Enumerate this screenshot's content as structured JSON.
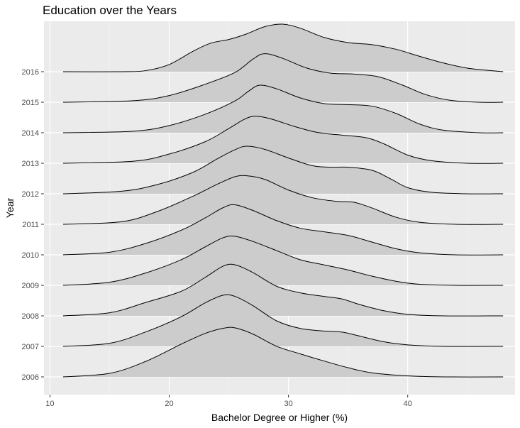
{
  "chart_data": {
    "type": "ridgeline",
    "title": "Education over the Years",
    "xlabel": "Bachelor Degree or Higher (%)",
    "ylabel": "Year",
    "xlim": [
      9.5,
      49
    ],
    "x_ticks": [
      10,
      20,
      30,
      40
    ],
    "x_range_of_each_ridge": [
      11.1,
      48
    ],
    "grid": true,
    "panel_background": "#ebebeb",
    "fill_color": "#cccccc",
    "line_color": "#000000",
    "series": [
      {
        "name": "2006",
        "points": [
          [
            11.1,
            0.0
          ],
          [
            15,
            0.07
          ],
          [
            18,
            0.3
          ],
          [
            21,
            0.64
          ],
          [
            23,
            0.85
          ],
          [
            24.5,
            0.95
          ],
          [
            25.5,
            0.96
          ],
          [
            27,
            0.84
          ],
          [
            29,
            0.6
          ],
          [
            31,
            0.45
          ],
          [
            33,
            0.31
          ],
          [
            35,
            0.18
          ],
          [
            37,
            0.08
          ],
          [
            40,
            0.02
          ],
          [
            43,
            0.0
          ],
          [
            48,
            0.0
          ]
        ]
      },
      {
        "name": "2007",
        "points": [
          [
            11.1,
            0.0
          ],
          [
            15,
            0.06
          ],
          [
            18,
            0.28
          ],
          [
            21,
            0.58
          ],
          [
            23,
            0.85
          ],
          [
            24.5,
            1.0
          ],
          [
            25.5,
            0.98
          ],
          [
            27,
            0.8
          ],
          [
            29,
            0.5
          ],
          [
            31,
            0.35
          ],
          [
            33,
            0.3
          ],
          [
            34.5,
            0.28
          ],
          [
            36,
            0.2
          ],
          [
            38,
            0.09
          ],
          [
            40,
            0.03
          ],
          [
            43,
            0.0
          ],
          [
            48,
            0.0
          ]
        ]
      },
      {
        "name": "2008",
        "points": [
          [
            11.1,
            0.0
          ],
          [
            15,
            0.06
          ],
          [
            18,
            0.26
          ],
          [
            21,
            0.48
          ],
          [
            23,
            0.75
          ],
          [
            24.5,
            0.97
          ],
          [
            25.5,
            1.0
          ],
          [
            27,
            0.85
          ],
          [
            29,
            0.58
          ],
          [
            31,
            0.45
          ],
          [
            33,
            0.38
          ],
          [
            34.5,
            0.33
          ],
          [
            36,
            0.22
          ],
          [
            38,
            0.1
          ],
          [
            40,
            0.03
          ],
          [
            43,
            0.0
          ],
          [
            48,
            0.0
          ]
        ]
      },
      {
        "name": "2009",
        "points": [
          [
            11.1,
            0.0
          ],
          [
            15,
            0.06
          ],
          [
            18,
            0.24
          ],
          [
            21,
            0.5
          ],
          [
            23,
            0.75
          ],
          [
            24.5,
            0.93
          ],
          [
            25.5,
            0.96
          ],
          [
            27,
            0.86
          ],
          [
            29,
            0.68
          ],
          [
            31,
            0.5
          ],
          [
            33,
            0.4
          ],
          [
            35,
            0.3
          ],
          [
            37,
            0.18
          ],
          [
            39,
            0.08
          ],
          [
            41,
            0.02
          ],
          [
            44,
            0.0
          ],
          [
            48,
            0.0
          ]
        ]
      },
      {
        "name": "2010",
        "points": [
          [
            11.1,
            0.0
          ],
          [
            15,
            0.05
          ],
          [
            18,
            0.22
          ],
          [
            21,
            0.48
          ],
          [
            23,
            0.72
          ],
          [
            24.5,
            0.92
          ],
          [
            25.5,
            0.98
          ],
          [
            27,
            0.87
          ],
          [
            29,
            0.67
          ],
          [
            31,
            0.52
          ],
          [
            33,
            0.45
          ],
          [
            35,
            0.38
          ],
          [
            37,
            0.25
          ],
          [
            39,
            0.12
          ],
          [
            41,
            0.04
          ],
          [
            44,
            0.0
          ],
          [
            48,
            0.0
          ]
        ]
      },
      {
        "name": "2011",
        "points": [
          [
            11.1,
            0.0
          ],
          [
            16,
            0.05
          ],
          [
            19,
            0.25
          ],
          [
            22,
            0.55
          ],
          [
            24,
            0.78
          ],
          [
            25.5,
            0.93
          ],
          [
            26.5,
            0.95
          ],
          [
            28,
            0.88
          ],
          [
            30,
            0.67
          ],
          [
            32,
            0.52
          ],
          [
            34,
            0.45
          ],
          [
            35.5,
            0.43
          ],
          [
            37,
            0.32
          ],
          [
            39,
            0.14
          ],
          [
            41,
            0.04
          ],
          [
            44,
            0.0
          ],
          [
            48,
            0.0
          ]
        ]
      },
      {
        "name": "2012",
        "points": [
          [
            11.1,
            0.0
          ],
          [
            16,
            0.05
          ],
          [
            19,
            0.18
          ],
          [
            22,
            0.42
          ],
          [
            24,
            0.68
          ],
          [
            25.5,
            0.86
          ],
          [
            26.5,
            0.93
          ],
          [
            28,
            0.87
          ],
          [
            30,
            0.7
          ],
          [
            32,
            0.55
          ],
          [
            33.5,
            0.52
          ],
          [
            35,
            0.52
          ],
          [
            37,
            0.46
          ],
          [
            38.5,
            0.3
          ],
          [
            40,
            0.12
          ],
          [
            42,
            0.03
          ],
          [
            45,
            0.0
          ],
          [
            48,
            0.0
          ]
        ]
      },
      {
        "name": "2013",
        "points": [
          [
            11.1,
            0.0
          ],
          [
            17,
            0.04
          ],
          [
            20,
            0.18
          ],
          [
            23,
            0.42
          ],
          [
            25,
            0.68
          ],
          [
            26.3,
            0.86
          ],
          [
            27.2,
            0.92
          ],
          [
            28.5,
            0.87
          ],
          [
            30.5,
            0.72
          ],
          [
            32.5,
            0.6
          ],
          [
            34.5,
            0.55
          ],
          [
            36.5,
            0.5
          ],
          [
            38,
            0.38
          ],
          [
            40,
            0.16
          ],
          [
            42,
            0.05
          ],
          [
            45,
            0.0
          ],
          [
            48,
            0.0
          ]
        ]
      },
      {
        "name": "2014",
        "points": [
          [
            11.1,
            0.0
          ],
          [
            17,
            0.03
          ],
          [
            20,
            0.14
          ],
          [
            23,
            0.36
          ],
          [
            25.5,
            0.62
          ],
          [
            26.7,
            0.82
          ],
          [
            27.6,
            0.93
          ],
          [
            29,
            0.86
          ],
          [
            31,
            0.68
          ],
          [
            33,
            0.57
          ],
          [
            35,
            0.55
          ],
          [
            37,
            0.52
          ],
          [
            39,
            0.38
          ],
          [
            41,
            0.17
          ],
          [
            43,
            0.05
          ],
          [
            46,
            0.0
          ],
          [
            48,
            0.0
          ]
        ]
      },
      {
        "name": "2015",
        "points": [
          [
            11.1,
            0.0
          ],
          [
            17,
            0.03
          ],
          [
            20,
            0.13
          ],
          [
            23,
            0.35
          ],
          [
            25.5,
            0.58
          ],
          [
            27,
            0.84
          ],
          [
            28.0,
            0.95
          ],
          [
            29.5,
            0.86
          ],
          [
            31.5,
            0.67
          ],
          [
            33.5,
            0.57
          ],
          [
            35.5,
            0.55
          ],
          [
            37.5,
            0.5
          ],
          [
            39.5,
            0.34
          ],
          [
            41.5,
            0.15
          ],
          [
            43.5,
            0.04
          ],
          [
            46,
            0.0
          ],
          [
            48,
            0.0
          ]
        ]
      },
      {
        "name": "2016",
        "points": [
          [
            11.1,
            0.0
          ],
          [
            16,
            0.0
          ],
          [
            18,
            0.02
          ],
          [
            20,
            0.14
          ],
          [
            22,
            0.4
          ],
          [
            23.5,
            0.56
          ],
          [
            25,
            0.63
          ],
          [
            26.5,
            0.74
          ],
          [
            28,
            0.88
          ],
          [
            29.5,
            0.93
          ],
          [
            31,
            0.85
          ],
          [
            33,
            0.67
          ],
          [
            35,
            0.57
          ],
          [
            37,
            0.53
          ],
          [
            39,
            0.44
          ],
          [
            41,
            0.3
          ],
          [
            43,
            0.17
          ],
          [
            45,
            0.07
          ],
          [
            47,
            0.02
          ],
          [
            48,
            0.0
          ]
        ]
      }
    ]
  }
}
